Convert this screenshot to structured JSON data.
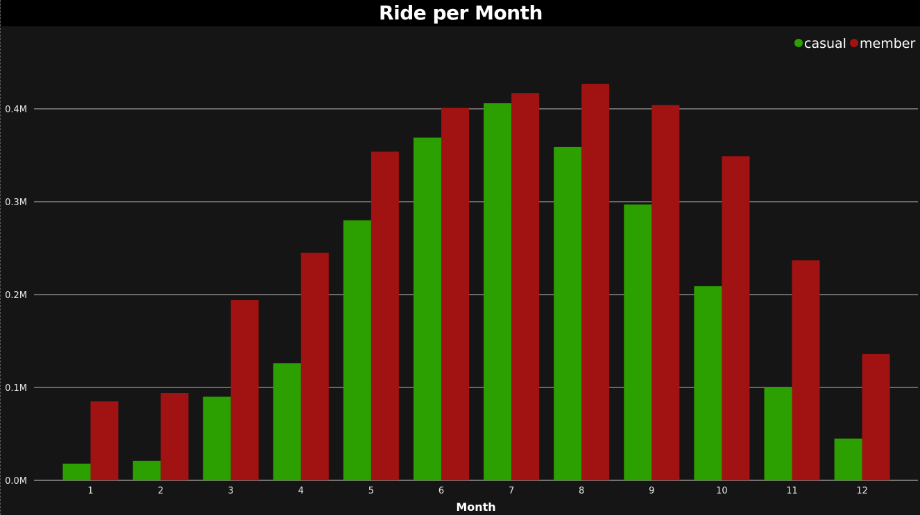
{
  "title": "Ride per Month",
  "chart_data": {
    "type": "bar",
    "title": "Ride per Month",
    "xlabel": "Month",
    "ylabel": "",
    "categories": [
      "1",
      "2",
      "3",
      "4",
      "5",
      "6",
      "7",
      "8",
      "9",
      "10",
      "11",
      "12"
    ],
    "series": [
      {
        "name": "casual",
        "color": "#2ca000",
        "values": [
          18000,
          21000,
          90000,
          126000,
          280000,
          369000,
          406000,
          359000,
          297000,
          209000,
          100000,
          45000
        ]
      },
      {
        "name": "member",
        "color": "#a11212",
        "values": [
          85000,
          94000,
          194000,
          245000,
          354000,
          401000,
          417000,
          427000,
          404000,
          349000,
          237000,
          136000
        ]
      }
    ],
    "yticks": [
      0,
      100000,
      200000,
      300000,
      400000
    ],
    "ytick_labels": [
      "0.0M",
      "0.1M",
      "0.2M",
      "0.3M",
      "0.4M"
    ],
    "ylim": [
      0,
      400000
    ],
    "grid": true,
    "legend": "top-right"
  }
}
